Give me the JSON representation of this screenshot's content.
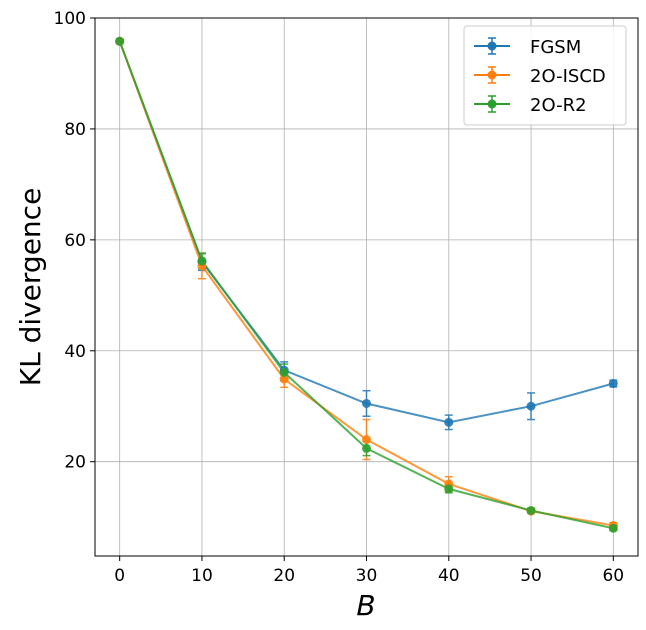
{
  "chart_data": {
    "type": "line",
    "title": "",
    "xlabel": "B",
    "ylabel": "KL divergence",
    "x": [
      0,
      10,
      20,
      30,
      40,
      50,
      60
    ],
    "xlim": [
      -3,
      63
    ],
    "ylim": [
      3,
      100
    ],
    "xticks": [
      "0",
      "10",
      "20",
      "30",
      "40",
      "50",
      "60"
    ],
    "yticks": [
      "20",
      "40",
      "60",
      "80",
      "100"
    ],
    "grid": true,
    "legend_position": "top-right",
    "series": [
      {
        "name": "FGSM",
        "color": "#1f77b4",
        "values": [
          95.8,
          56.0,
          36.5,
          30.5,
          27.1,
          30.0,
          34.1
        ],
        "errors": [
          0.3,
          1.5,
          1.5,
          2.3,
          1.3,
          2.4,
          0.6
        ]
      },
      {
        "name": "2O-ISCD",
        "color": "#ff7f0e",
        "values": [
          95.8,
          55.3,
          34.9,
          24.0,
          16.0,
          11.1,
          8.5
        ],
        "errors": [
          0.3,
          2.3,
          1.5,
          3.6,
          1.3,
          0.4,
          0.5
        ]
      },
      {
        "name": "2O-R2",
        "color": "#2ca02c",
        "values": [
          95.8,
          56.2,
          36.1,
          22.4,
          15.1,
          11.2,
          8.0
        ],
        "errors": [
          0.3,
          1.4,
          1.5,
          1.3,
          0.7,
          0.4,
          0.4
        ]
      }
    ]
  }
}
